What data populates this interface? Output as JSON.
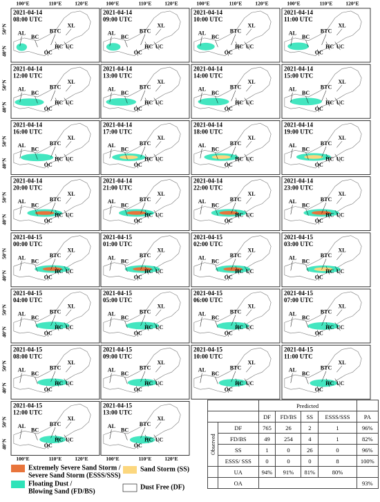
{
  "axes": {
    "lon_labels": [
      "100°E",
      "110°E",
      "120°E"
    ],
    "lat_labels": [
      "50°N",
      "40°N"
    ]
  },
  "region_labels": [
    "AL",
    "BC",
    "BTC",
    "XL",
    "HC",
    "UC",
    "OC"
  ],
  "panels": [
    {
      "date": "2021-04-14",
      "time": "08:00 UTC"
    },
    {
      "date": "2021-04-14",
      "time": "09:00 UTC"
    },
    {
      "date": "2021-04-14",
      "time": "10:00 UTC"
    },
    {
      "date": "2021-04-14",
      "time": "11:00 UTC"
    },
    {
      "date": "2021-04-14",
      "time": "12:00 UTC"
    },
    {
      "date": "2021-04-14",
      "time": "13:00 UTC"
    },
    {
      "date": "2021-04-14",
      "time": "14:00 UTC"
    },
    {
      "date": "2021-04-14",
      "time": "15:00 UTC"
    },
    {
      "date": "2021-04-14",
      "time": "16:00 UTC"
    },
    {
      "date": "2021-04-14",
      "time": "17:00 UTC"
    },
    {
      "date": "2021-04-14",
      "time": "18:00 UTC"
    },
    {
      "date": "2021-04-14",
      "time": "19:00 UTC"
    },
    {
      "date": "2021-04-14",
      "time": "20:00 UTC"
    },
    {
      "date": "2021-04-14",
      "time": "21:00 UTC"
    },
    {
      "date": "2021-04-14",
      "time": "22:00 UTC"
    },
    {
      "date": "2021-04-14",
      "time": "23:00 UTC"
    },
    {
      "date": "2021-04-15",
      "time": "00:00 UTC"
    },
    {
      "date": "2021-04-15",
      "time": "01:00 UTC"
    },
    {
      "date": "2021-04-15",
      "time": "02:00 UTC"
    },
    {
      "date": "2021-04-15",
      "time": "03:00 UTC"
    },
    {
      "date": "2021-04-15",
      "time": "04:00 UTC"
    },
    {
      "date": "2021-04-15",
      "time": "05:00 UTC"
    },
    {
      "date": "2021-04-15",
      "time": "06:00 UTC"
    },
    {
      "date": "2021-04-15",
      "time": "07:00 UTC"
    },
    {
      "date": "2021-04-15",
      "time": "08:00 UTC"
    },
    {
      "date": "2021-04-15",
      "time": "09:00 UTC"
    },
    {
      "date": "2021-04-15",
      "time": "10:00 UTC"
    },
    {
      "date": "2021-04-15",
      "time": "11:00 UTC"
    },
    {
      "date": "2021-04-15",
      "time": "12:00 UTC"
    },
    {
      "date": "2021-04-15",
      "time": "13:00 UTC"
    }
  ],
  "legend": [
    {
      "lines": [
        "Extremely Severe Sand Storm /",
        "Severe Sand Storm (ESSS/SSS)"
      ],
      "color": "#e8743b"
    },
    {
      "lines": [
        "Sand Storm (SS)"
      ],
      "color": "#fcd77e"
    },
    {
      "lines": [
        "Floating Dust /",
        "Blowing Sand (FD/BS)"
      ],
      "color": "#2fe3b9"
    },
    {
      "lines": [
        "Dust Free (DF)"
      ],
      "color": "#ffffff"
    }
  ],
  "table": {
    "predicted_label": "Predicted",
    "observed_label": "Observed",
    "columns": [
      "DF",
      "FD/BS",
      "SS",
      "ESSS/SSS",
      "PA"
    ],
    "rows": [
      {
        "label": "DF",
        "cells": [
          "765",
          "26",
          "2",
          "1",
          "96%"
        ]
      },
      {
        "label": "FD/BS",
        "cells": [
          "49",
          "254",
          "4",
          "1",
          "82%"
        ]
      },
      {
        "label": "SS",
        "cells": [
          "1",
          "0",
          "26",
          "0",
          "96%"
        ]
      },
      {
        "label": "ESSS/ SSS",
        "cells": [
          "0",
          "0",
          "0",
          "8",
          "100%"
        ]
      }
    ],
    "ua": {
      "label": "UA",
      "cells": [
        "94%",
        "91%",
        "81%",
        "80%"
      ]
    },
    "oa": {
      "label": "OA",
      "value": "93%"
    }
  }
}
